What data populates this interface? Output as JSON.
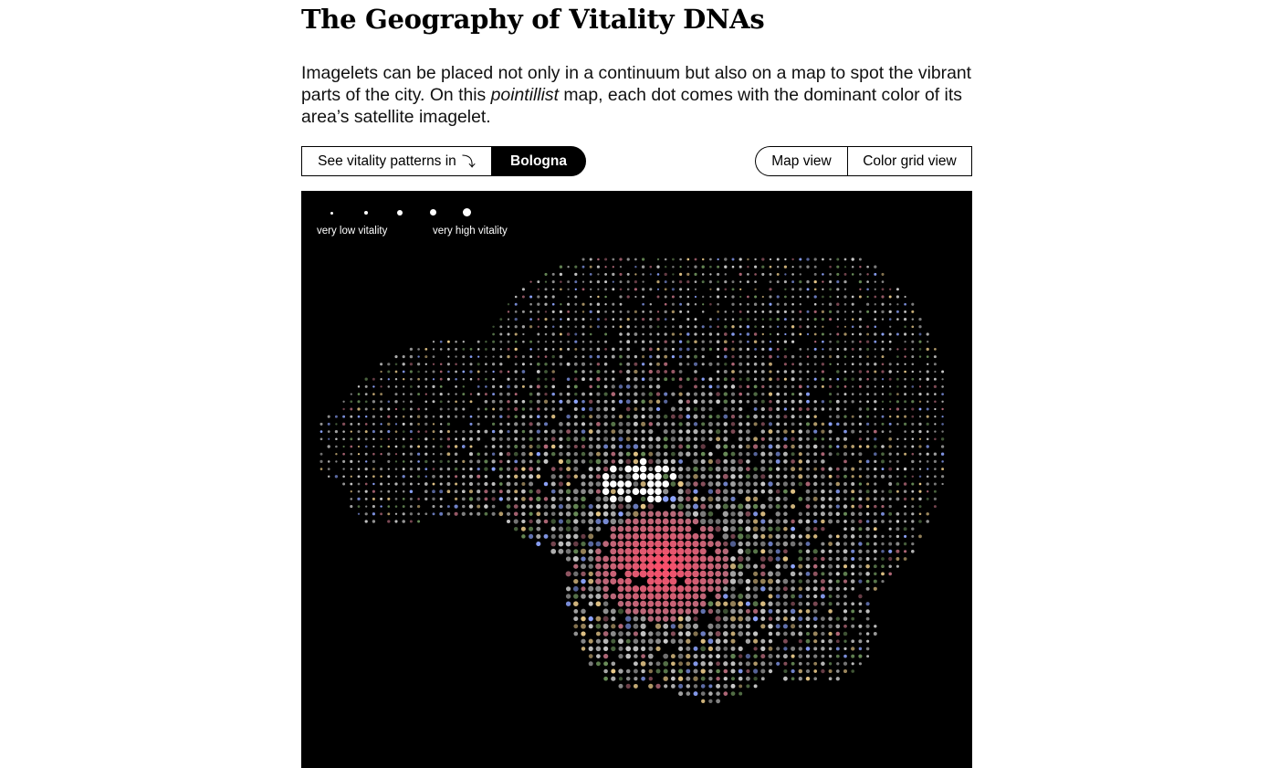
{
  "title": "The Geography of Vitality DNAs",
  "intro": {
    "part1": "Imagelets can be placed not only in a continuum but also on a map to spot the vibrant parts of the city. On this ",
    "emphasis": "pointillist",
    "part2": " map, each dot comes with the dominant color of its area’s satellite imagelet."
  },
  "city_picker": {
    "label": "See vitality patterns in",
    "arrow_icon": "corner-down-arrow-icon",
    "selected_city": "Bologna"
  },
  "view_toggle": {
    "options": [
      "Map view",
      "Color grid view"
    ]
  },
  "map": {
    "background": "#000000",
    "legend": {
      "levels": [
        "very low",
        "low",
        "medium",
        "high",
        "very high"
      ],
      "low_label": "very low vitality",
      "high_label": "very high vitality"
    },
    "palette": {
      "hotspot": "#ff4d6a",
      "bright": "#ffffff",
      "dot_default": "#c8c8c8",
      "accents": [
        "#8fa6ff",
        "#e8c98a",
        "#6b8f5a",
        "#b46a7a",
        "#d0d0d0"
      ]
    }
  }
}
